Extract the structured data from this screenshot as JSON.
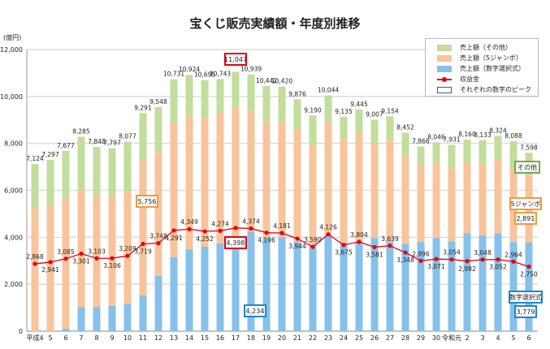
{
  "chart_data": {
    "type": "bar",
    "title": "宝くじ販売実績額・年度別推移",
    "ylabel": "(億円)",
    "ylim": [
      0,
      12000
    ],
    "yticks": [
      "0",
      "2,000",
      "4,000",
      "6,000",
      "8,000",
      "10,000",
      "12,000"
    ],
    "grid": true,
    "legend_placement": "top-right",
    "categories": [
      "平成4",
      "5",
      "6",
      "7",
      "8",
      "9",
      "10",
      "11",
      "12",
      "13",
      "14",
      "15",
      "16",
      "17",
      "18",
      "19",
      "20",
      "21",
      "22",
      "23",
      "24",
      "25",
      "26",
      "27",
      "28",
      "29",
      "30",
      "令和元",
      "2",
      "3",
      "4",
      "5",
      "6"
    ],
    "series": [
      {
        "name": "売上額（数字選択式）",
        "color": "#85c1ea",
        "values": [
          0,
          0,
          100,
          1020,
          1020,
          1080,
          1160,
          1524,
          2360,
          3150,
          3490,
          3600,
          3740,
          3900,
          4234,
          3970,
          3990,
          3800,
          3630,
          4080,
          3740,
          3850,
          3970,
          3800,
          3720,
          3800,
          3970,
          3830,
          4170,
          4080,
          4170,
          3800,
          3779
        ]
      },
      {
        "name": "売上額（5ジャンボ）",
        "color": "#f8c49c",
        "values": [
          5220,
          5330,
          5570,
          5020,
          4780,
          4670,
          4790,
          5756,
          5240,
          5730,
          5670,
          5530,
          5580,
          5660,
          5176,
          4990,
          4970,
          4780,
          4310,
          4850,
          4450,
          4620,
          4020,
          4330,
          3730,
          3260,
          3230,
          3110,
          3030,
          3060,
          3130,
          3170,
          2891
        ]
      },
      {
        "name": "売上額（その他）",
        "color": "#c2dd9c",
        "values": [
          1904,
          1967,
          2007,
          2245,
          2048,
          2047,
          2127,
          2011,
          1948,
          1851,
          1764,
          1565,
          1423,
          1487,
          1529,
          1482,
          1460,
          1296,
          1250,
          1114,
          945,
          975,
          1017,
          1024,
          1002,
          806,
          846,
          991,
          960,
          993,
          1024,
          1118,
          928
        ]
      }
    ],
    "totals": [
      7124,
      7297,
      7677,
      8285,
      7848,
      7797,
      8077,
      9291,
      9548,
      10731,
      10924,
      10695,
      10743,
      11047,
      10939,
      10442,
      10420,
      9876,
      9190,
      10044,
      9135,
      9445,
      9007,
      9154,
      8452,
      7866,
      8046,
      7931,
      8160,
      8133,
      8324,
      8088,
      7598
    ],
    "line": {
      "name": "収益金",
      "color": "#e60012",
      "values": [
        2868,
        2941,
        3085,
        3301,
        3103,
        3106,
        3209,
        3719,
        3748,
        4291,
        4349,
        4252,
        4274,
        4398,
        4374,
        4196,
        4181,
        3944,
        3590,
        4126,
        3675,
        3804,
        3581,
        3639,
        3348,
        2996,
        3071,
        3054,
        2982,
        3048,
        3052,
        2964,
        2750
      ]
    },
    "legend_peak": "それぞれの数字のピーク",
    "annotations": {
      "peak_total": "11,047",
      "peak_revenue": "4,398",
      "peak_jumbo": "5,756",
      "peak_numbers": "4,234",
      "label_other": "その他",
      "label_jumbo": "5ジャンボ",
      "value_jumbo": "2,891",
      "label_numbers": "数字選択式",
      "value_numbers": "3,779"
    }
  }
}
